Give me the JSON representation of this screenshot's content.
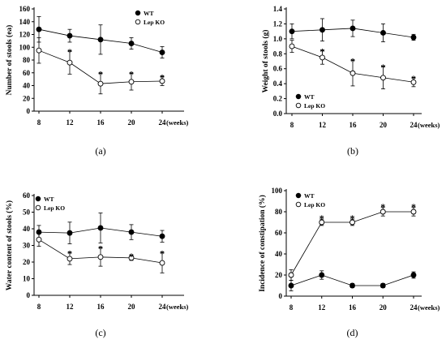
{
  "chart_data": [
    {
      "type": "line",
      "panel_label": "(a)",
      "ylabel": "Number of stools (ea)",
      "xunit": "(weeks)",
      "categories": [
        "8",
        "12",
        "16",
        "20",
        "24"
      ],
      "ylim": [
        0,
        160
      ],
      "yticks": [
        "0",
        "20",
        "40",
        "60",
        "80",
        "100",
        "120",
        "140",
        "160"
      ],
      "legend_position": "top-right",
      "series": [
        {
          "name": "WT",
          "values": [
            128,
            118,
            112,
            106,
            92
          ],
          "errors": [
            20,
            10,
            23,
            9,
            9
          ],
          "marker": "filled"
        },
        {
          "name": "Lep KO",
          "values": [
            95,
            76,
            43,
            46,
            47
          ],
          "errors": [
            20,
            18,
            16,
            13,
            7
          ],
          "marker": "open"
        }
      ],
      "significance": [
        {
          "x": "12",
          "label": "*"
        },
        {
          "x": "16",
          "label": "*"
        },
        {
          "x": "20",
          "label": "*"
        },
        {
          "x": "24",
          "label": "*"
        }
      ]
    },
    {
      "type": "line",
      "panel_label": "(b)",
      "ylabel": "Weight of stools (g)",
      "xunit": "(weeks)",
      "categories": [
        "8",
        "12",
        "16",
        "20",
        "24"
      ],
      "ylim": [
        0,
        1.4
      ],
      "yticks": [
        "0.0",
        "0.2",
        "0.4",
        "0.6",
        "0.8",
        "1.0",
        "1.2",
        "1.4"
      ],
      "legend_position": "bottom-left",
      "series": [
        {
          "name": "WT",
          "values": [
            1.1,
            1.12,
            1.14,
            1.08,
            1.02
          ],
          "errors": [
            0.1,
            0.15,
            0.11,
            0.12,
            0.04
          ],
          "marker": "filled"
        },
        {
          "name": "Lep KO",
          "values": [
            0.9,
            0.75,
            0.54,
            0.48,
            0.42
          ],
          "errors": [
            0.08,
            0.09,
            0.17,
            0.15,
            0.06
          ],
          "marker": "open"
        }
      ],
      "significance": [
        {
          "x": "12",
          "label": "*"
        },
        {
          "x": "16",
          "label": "*"
        },
        {
          "x": "20",
          "label": "*"
        },
        {
          "x": "24",
          "label": "*"
        }
      ]
    },
    {
      "type": "line",
      "panel_label": "(c)",
      "ylabel": "Water content of stools (%)",
      "xunit": "(weeks)",
      "categories": [
        "8",
        "12",
        "16",
        "20",
        "24"
      ],
      "ylim": [
        0,
        60
      ],
      "yticks": [
        "0",
        "10",
        "20",
        "30",
        "40",
        "50",
        "60"
      ],
      "legend_position": "top-left",
      "series": [
        {
          "name": "WT",
          "values": [
            38,
            37.5,
            40.5,
            38,
            35.5
          ],
          "errors": [
            4,
            6.5,
            9,
            4.5,
            3.5
          ],
          "marker": "filled"
        },
        {
          "name": "Lep KO",
          "values": [
            33.5,
            22,
            23,
            22.5,
            19.5
          ],
          "errors": [
            4,
            3.5,
            5.5,
            1.5,
            6
          ],
          "marker": "open"
        }
      ],
      "significance": [
        {
          "x": "12",
          "label": "*"
        },
        {
          "x": "16",
          "label": "*"
        },
        {
          "x": "20",
          "label": "*"
        },
        {
          "x": "24",
          "label": "*"
        }
      ]
    },
    {
      "type": "line",
      "panel_label": "(d)",
      "ylabel": "Incidence of constipation (%)",
      "xunit": "(weeks)",
      "categories": [
        "8",
        "12",
        "16",
        "20",
        "24"
      ],
      "ylim": [
        0,
        100
      ],
      "yticks": [
        "0",
        "20",
        "40",
        "60",
        "80",
        "100"
      ],
      "legend_position": "top-left",
      "series": [
        {
          "name": "WT",
          "values": [
            10,
            20,
            10,
            10,
            20
          ],
          "errors": [
            5,
            4,
            2,
            2,
            3
          ],
          "marker": "filled"
        },
        {
          "name": "Lep KO",
          "values": [
            20,
            70,
            70,
            80,
            80
          ],
          "errors": [
            5,
            3,
            3,
            4,
            4
          ],
          "marker": "open"
        }
      ],
      "significance": [
        {
          "x": "12",
          "label": "*"
        },
        {
          "x": "16",
          "label": "*"
        },
        {
          "x": "20",
          "label": "*"
        },
        {
          "x": "24",
          "label": "*"
        }
      ]
    }
  ]
}
